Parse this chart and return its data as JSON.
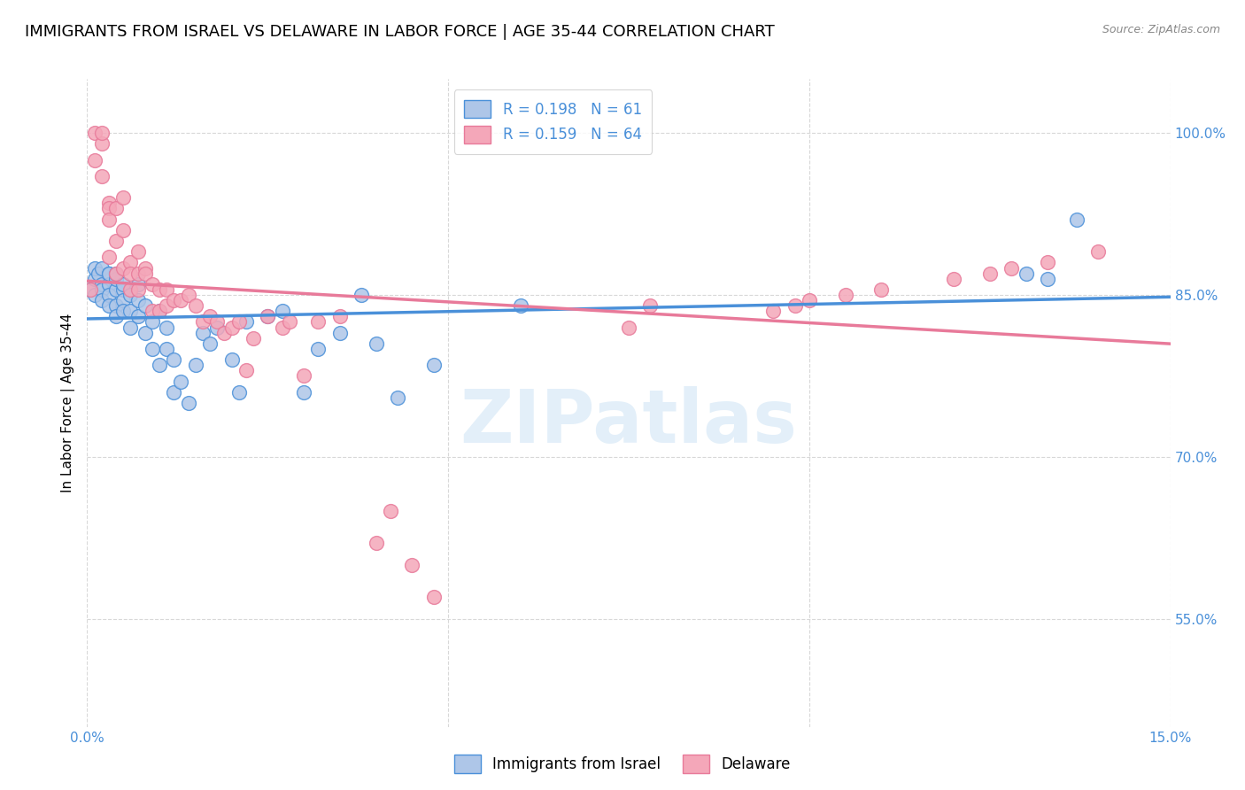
{
  "title": "IMMIGRANTS FROM ISRAEL VS DELAWARE IN LABOR FORCE | AGE 35-44 CORRELATION CHART",
  "source": "Source: ZipAtlas.com",
  "ylabel": "In Labor Force | Age 35-44",
  "xlim": [
    0.0,
    0.15
  ],
  "ylim": [
    0.45,
    1.05
  ],
  "xticks": [
    0.0,
    0.05,
    0.1,
    0.15
  ],
  "xticklabels": [
    "0.0%",
    "",
    "",
    "15.0%"
  ],
  "yticks": [
    0.55,
    0.7,
    0.85,
    1.0
  ],
  "yticklabels": [
    "55.0%",
    "70.0%",
    "85.0%",
    "100.0%"
  ],
  "israel_R": 0.198,
  "israel_N": 61,
  "delaware_R": 0.159,
  "delaware_N": 64,
  "israel_color": "#aec6e8",
  "delaware_color": "#f4a7b9",
  "israel_line_color": "#4a90d9",
  "delaware_line_color": "#e87a9a",
  "legend_text_color": "#4a90d9",
  "watermark": "ZIPatlas",
  "background_color": "#ffffff",
  "grid_color": "#d8d8d8",
  "title_fontsize": 13,
  "axis_label_fontsize": 11,
  "tick_label_color": "#4a90d9",
  "israel_x": [
    0.0005,
    0.001,
    0.001,
    0.001,
    0.0015,
    0.002,
    0.002,
    0.002,
    0.002,
    0.003,
    0.003,
    0.003,
    0.003,
    0.003,
    0.004,
    0.004,
    0.004,
    0.004,
    0.004,
    0.005,
    0.005,
    0.005,
    0.005,
    0.006,
    0.006,
    0.006,
    0.007,
    0.007,
    0.007,
    0.008,
    0.008,
    0.009,
    0.009,
    0.01,
    0.01,
    0.011,
    0.011,
    0.012,
    0.012,
    0.013,
    0.014,
    0.015,
    0.016,
    0.017,
    0.018,
    0.02,
    0.021,
    0.022,
    0.025,
    0.027,
    0.03,
    0.032,
    0.035,
    0.038,
    0.04,
    0.043,
    0.048,
    0.06,
    0.13,
    0.133,
    0.137
  ],
  "israel_y": [
    0.855,
    0.865,
    0.85,
    0.875,
    0.87,
    0.86,
    0.875,
    0.855,
    0.845,
    0.87,
    0.86,
    0.85,
    0.84,
    0.87,
    0.855,
    0.865,
    0.84,
    0.83,
    0.87,
    0.855,
    0.845,
    0.835,
    0.86,
    0.85,
    0.835,
    0.82,
    0.845,
    0.83,
    0.86,
    0.84,
    0.815,
    0.825,
    0.8,
    0.785,
    0.835,
    0.82,
    0.8,
    0.76,
    0.79,
    0.77,
    0.75,
    0.785,
    0.815,
    0.805,
    0.82,
    0.79,
    0.76,
    0.825,
    0.83,
    0.835,
    0.76,
    0.8,
    0.815,
    0.85,
    0.805,
    0.755,
    0.785,
    0.84,
    0.87,
    0.865,
    0.92
  ],
  "delaware_x": [
    0.0005,
    0.001,
    0.001,
    0.002,
    0.002,
    0.002,
    0.003,
    0.003,
    0.003,
    0.003,
    0.004,
    0.004,
    0.004,
    0.005,
    0.005,
    0.005,
    0.006,
    0.006,
    0.006,
    0.007,
    0.007,
    0.007,
    0.008,
    0.008,
    0.009,
    0.009,
    0.01,
    0.01,
    0.011,
    0.011,
    0.012,
    0.013,
    0.014,
    0.015,
    0.016,
    0.017,
    0.018,
    0.019,
    0.02,
    0.021,
    0.022,
    0.023,
    0.025,
    0.027,
    0.028,
    0.03,
    0.032,
    0.035,
    0.04,
    0.042,
    0.045,
    0.048,
    0.075,
    0.078,
    0.095,
    0.098,
    0.1,
    0.105,
    0.11,
    0.12,
    0.125,
    0.128,
    0.133,
    0.14
  ],
  "delaware_y": [
    0.855,
    1.0,
    0.975,
    0.96,
    0.99,
    1.0,
    0.935,
    0.93,
    0.92,
    0.885,
    0.93,
    0.9,
    0.87,
    0.94,
    0.91,
    0.875,
    0.88,
    0.87,
    0.855,
    0.89,
    0.87,
    0.855,
    0.875,
    0.87,
    0.86,
    0.835,
    0.855,
    0.835,
    0.855,
    0.84,
    0.845,
    0.845,
    0.85,
    0.84,
    0.825,
    0.83,
    0.825,
    0.815,
    0.82,
    0.825,
    0.78,
    0.81,
    0.83,
    0.82,
    0.825,
    0.775,
    0.825,
    0.83,
    0.62,
    0.65,
    0.6,
    0.57,
    0.82,
    0.84,
    0.835,
    0.84,
    0.845,
    0.85,
    0.855,
    0.865,
    0.87,
    0.875,
    0.88,
    0.89
  ]
}
